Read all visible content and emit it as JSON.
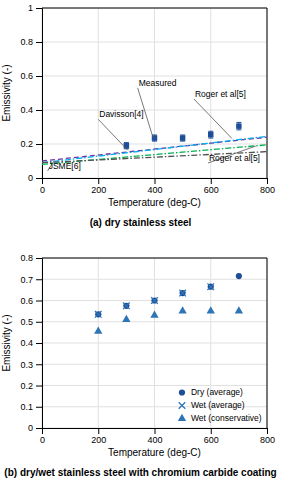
{
  "chart_data": [
    {
      "type": "line",
      "title": "(a) dry stainless steel",
      "xlabel": "Temperature (deg-C)",
      "ylabel": "Emissivity (-)",
      "xlim": [
        0,
        800
      ],
      "ylim": [
        0,
        1
      ],
      "xticks": [
        0,
        200,
        400,
        600,
        800
      ],
      "yticks": [
        0,
        0.2,
        0.4,
        0.6,
        0.8,
        1
      ],
      "grid": true,
      "series": [
        {
          "type": "line",
          "color": "#7030a0",
          "line_style": "dashed",
          "x": [
            0,
            800
          ],
          "values": [
            0.1,
            0.24
          ]
        },
        {
          "type": "line",
          "color": "#00b0f0",
          "line_style": "dash-dot",
          "x": [
            0,
            800
          ],
          "values": [
            0.09,
            0.245
          ]
        },
        {
          "type": "line",
          "color": "#00b050",
          "line_style": "dash-dot",
          "x": [
            0,
            800
          ],
          "values": [
            0.08,
            0.195
          ]
        },
        {
          "type": "line",
          "color": "#505050",
          "line_style": "dash-dot",
          "x": [
            0,
            800
          ],
          "values": [
            0.09,
            0.155
          ]
        },
        {
          "type": "scatter",
          "color": "#1f4e99",
          "marker": "square",
          "x": [
            300,
            400,
            500,
            600,
            700
          ],
          "values": [
            0.19,
            0.235,
            0.235,
            0.255,
            0.305
          ],
          "errors": [
            0.018,
            0.018,
            0.018,
            0.02,
            0.022
          ]
        }
      ],
      "annotations": [
        {
          "text": "Measured",
          "x": 395,
          "y": 0.237,
          "text_x": 340,
          "text_y": 0.53
        },
        {
          "text": "Davisson[4]",
          "x": 305,
          "y": 0.163,
          "text_x": 200,
          "text_y": 0.345
        },
        {
          "text": "Roger et al[5]",
          "x": 675,
          "y": 0.233,
          "text_x": 540,
          "text_y": 0.465
        },
        {
          "text": "Roger et al[5]",
          "x": 760,
          "y": 0.188,
          "text_x": 590,
          "text_y": 0.088
        },
        {
          "text": "JSME[6]",
          "x": 40,
          "y": 0.095,
          "text_x": 20,
          "text_y": 0.042
        }
      ]
    },
    {
      "type": "scatter",
      "title": "(b) dry/wet stainless steel with chromium carbide coating",
      "xlabel": "Temperature (deg-C)",
      "ylabel": "Emissivity (-)",
      "xlim": [
        0,
        800
      ],
      "ylim": [
        0,
        0.8
      ],
      "xticks": [
        0,
        200,
        400,
        600,
        800
      ],
      "yticks": [
        0,
        0.1,
        0.2,
        0.3,
        0.4,
        0.5,
        0.6,
        0.7,
        0.8
      ],
      "grid": true,
      "legend": "lower right",
      "series": [
        {
          "name": "Dry (average)",
          "type": "scatter",
          "color": "#1f4e99",
          "marker": "circle",
          "x": [
            200,
            300,
            400,
            500,
            600,
            700
          ],
          "values": [
            0.535,
            0.575,
            0.6,
            0.635,
            0.665,
            0.715
          ]
        },
        {
          "name": "Wet (average)",
          "type": "scatter",
          "color": "#2e75b6",
          "marker": "x",
          "x": [
            200,
            300,
            400,
            500,
            600
          ],
          "values": [
            0.535,
            0.575,
            0.6,
            0.635,
            0.665
          ]
        },
        {
          "name": "Wet (conservative)",
          "type": "scatter",
          "color": "#2e75b6",
          "marker": "triangle",
          "x": [
            200,
            300,
            400,
            500,
            600,
            700
          ],
          "values": [
            0.455,
            0.51,
            0.53,
            0.55,
            0.55,
            0.55
          ]
        }
      ]
    }
  ]
}
